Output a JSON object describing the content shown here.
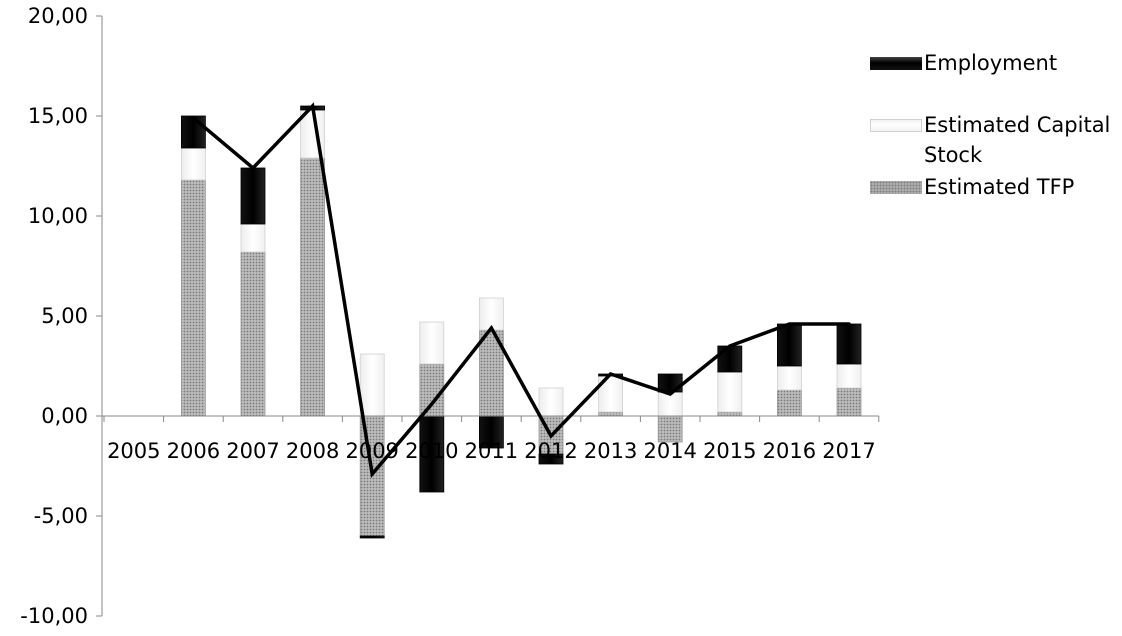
{
  "chart_data": {
    "type": "bar",
    "stacked": true,
    "title": "",
    "xlabel": "",
    "ylabel": "",
    "categories": [
      "2005",
      "2006",
      "2007",
      "2008",
      "2009",
      "2010",
      "2011",
      "2012",
      "2013",
      "2014",
      "2015",
      "2016",
      "2017"
    ],
    "ylim": [
      -10,
      20
    ],
    "yticks": [
      "20,00",
      "15,00",
      "10,00",
      "5,00",
      "0,00",
      "-5,00",
      "-10,00"
    ],
    "ytick_values": [
      20,
      15,
      10,
      5,
      0,
      -5,
      -10
    ],
    "series": [
      {
        "name": "Estimated TFP",
        "kind": "bar",
        "color": "#b5b5b5",
        "values": [
          null,
          11.8,
          8.2,
          12.9,
          -6.0,
          2.6,
          4.3,
          -1.9,
          0.2,
          -1.3,
          0.2,
          1.3,
          1.4
        ]
      },
      {
        "name": "Estimated Capital Stock",
        "kind": "bar",
        "color": "#ffffff",
        "values": [
          null,
          1.6,
          1.4,
          2.4,
          3.1,
          2.1,
          1.6,
          1.4,
          1.8,
          1.2,
          2.0,
          1.2,
          1.2
        ]
      },
      {
        "name": "Employment",
        "kind": "bar",
        "color": "#000000",
        "values": [
          null,
          1.6,
          2.8,
          0.2,
          -0.1,
          -3.8,
          -1.6,
          -0.5,
          0.1,
          0.9,
          1.3,
          2.1,
          2.0
        ]
      },
      {
        "kind": "line",
        "color": "#000000",
        "values": [
          null,
          14.9,
          12.4,
          15.5,
          -2.9,
          0.6,
          4.4,
          -1.0,
          2.1,
          1.1,
          3.5,
          4.6,
          4.6
        ]
      }
    ],
    "legend": {
      "position": "right",
      "items": [
        {
          "label": "Employment",
          "swatch": "employment"
        },
        {
          "label": "Estimated Capital Stock",
          "swatch": "capital"
        },
        {
          "label": "Estimated TFP",
          "swatch": "tfp"
        }
      ]
    },
    "grid": false
  }
}
